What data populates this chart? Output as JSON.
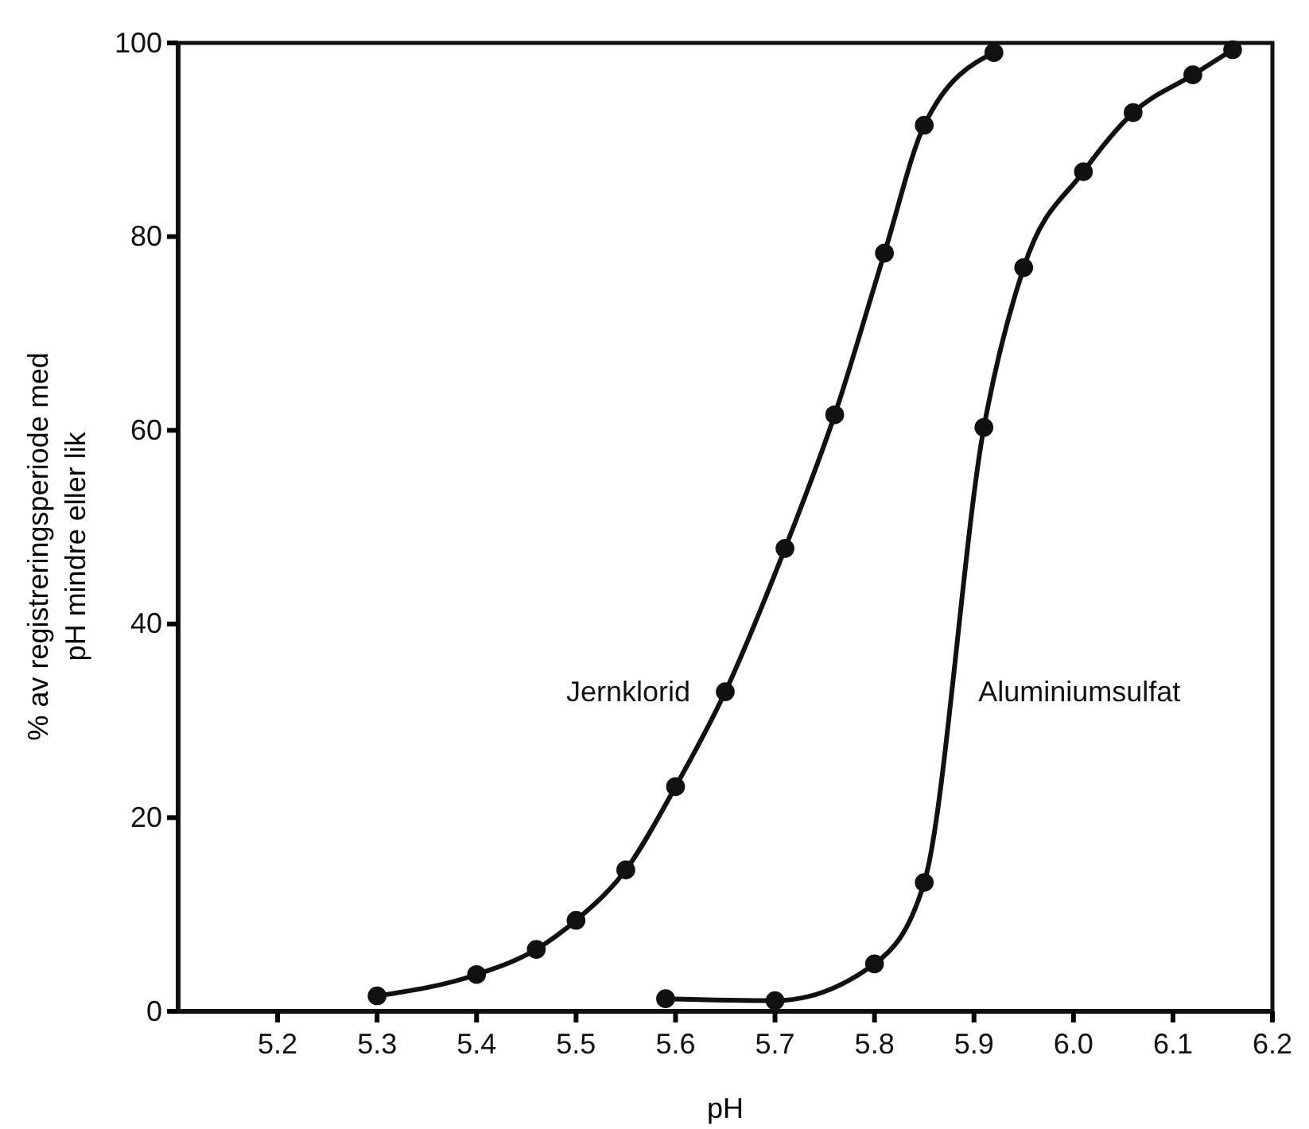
{
  "chart_data": {
    "type": "line",
    "xlabel": "pH",
    "ylabel": "% av registreringsperiode med pH mindre eller lik",
    "xlim": [
      5.1,
      6.2
    ],
    "ylim": [
      0,
      100
    ],
    "xticks": [
      5.2,
      5.3,
      5.4,
      5.5,
      5.6,
      5.7,
      5.8,
      5.9,
      {
        "value": 6.0,
        "label": "6.0"
      },
      6.1,
      6.2
    ],
    "yticks": [
      0,
      20,
      40,
      60,
      80,
      100
    ],
    "marker": "circle",
    "line_style": "solid",
    "series": [
      {
        "name": "Jernklorid",
        "color": "#111111",
        "x": [
          5.3,
          5.4,
          5.46,
          5.5,
          5.55,
          5.6,
          5.65,
          5.71,
          5.76,
          5.81,
          5.85,
          5.92
        ],
        "values": [
          1.6,
          3.8,
          6.4,
          9.4,
          14.6,
          23.2,
          33,
          47.8,
          61.6,
          78.3,
          91.5,
          99
        ]
      },
      {
        "name": "Aluminiumsulfat",
        "color": "#111111",
        "x": [
          5.59,
          5.7,
          5.8,
          5.85,
          5.91,
          5.95,
          6.01,
          6.06,
          6.12,
          6.16
        ],
        "values": [
          1.3,
          1.1,
          4.9,
          13.3,
          60.3,
          76.8,
          86.7,
          92.8,
          96.7,
          99.3
        ]
      }
    ]
  }
}
